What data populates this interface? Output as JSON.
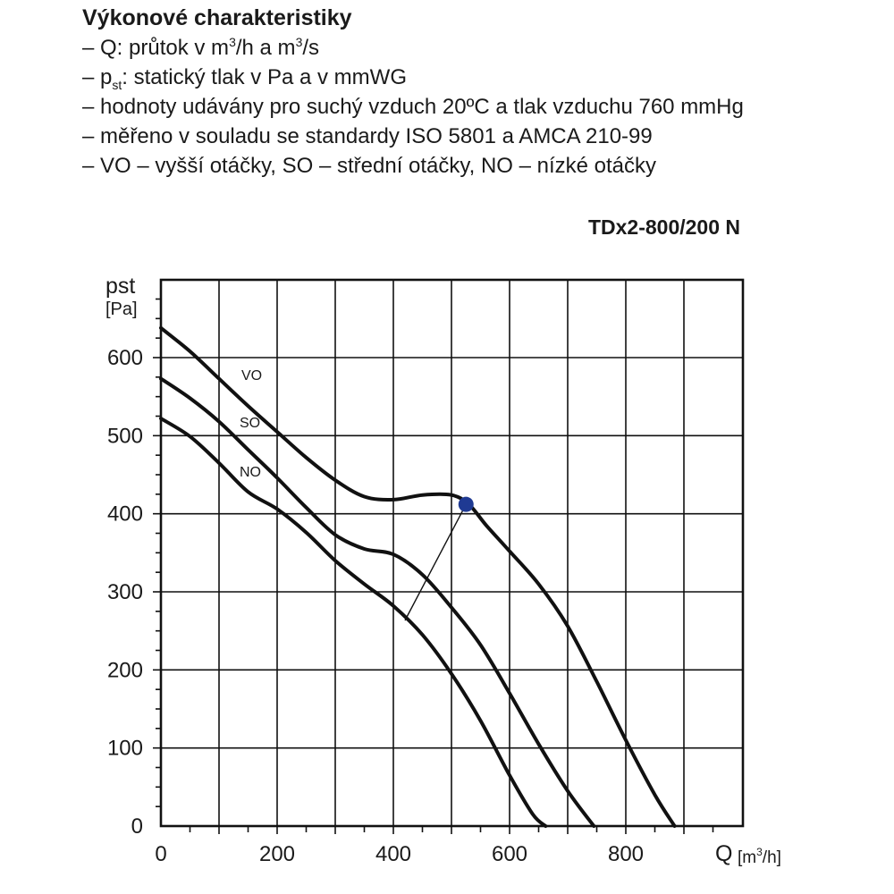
{
  "header": {
    "title": "Výkonové charakteristiky",
    "q_prefix": "– Q: průtok v m",
    "q_mid": "/h a m",
    "q_end": "/s",
    "q_sup": "3",
    "pst_prefix": "– p",
    "pst_sub": "st",
    "pst_rest": ": statický tlak v Pa a v mmWG",
    "line3": "– hodnoty udávány pro suchý vzduch 20ºC a tlak vzduchu 760 mmHg",
    "line4": "– měřeno v souladu se standardy ISO 5801 a AMCA 210-99",
    "line5": "– VO – vyšší otáčky, SO – střední otáčky, NO – nízké otáčky"
  },
  "chart_data": {
    "type": "line",
    "title": "TDx2-800/200 N",
    "xlabel": "Q",
    "xunit_prefix": "[m",
    "xunit_sup": "3",
    "xunit_suffix": "/h]",
    "ylabel": "pst",
    "yunit": "[Pa]",
    "xlim": [
      0,
      1000
    ],
    "ylim": [
      0,
      700
    ],
    "xticks": [
      0,
      200,
      400,
      600,
      800
    ],
    "yticks": [
      0,
      100,
      200,
      300,
      400,
      500,
      600
    ],
    "grid": true,
    "series": [
      {
        "name": "VO",
        "points": [
          [
            0,
            638
          ],
          [
            50,
            608
          ],
          [
            100,
            573
          ],
          [
            150,
            538
          ],
          [
            200,
            505
          ],
          [
            250,
            472
          ],
          [
            300,
            443
          ],
          [
            350,
            422
          ],
          [
            400,
            418
          ],
          [
            450,
            424
          ],
          [
            500,
            424
          ],
          [
            530,
            412
          ],
          [
            560,
            385
          ],
          [
            600,
            352
          ],
          [
            650,
            310
          ],
          [
            700,
            256
          ],
          [
            750,
            185
          ],
          [
            800,
            110
          ],
          [
            850,
            40
          ],
          [
            884,
            0
          ]
        ]
      },
      {
        "name": "SO",
        "points": [
          [
            0,
            573
          ],
          [
            50,
            548
          ],
          [
            100,
            518
          ],
          [
            150,
            482
          ],
          [
            200,
            446
          ],
          [
            250,
            408
          ],
          [
            300,
            373
          ],
          [
            350,
            355
          ],
          [
            400,
            348
          ],
          [
            450,
            322
          ],
          [
            500,
            280
          ],
          [
            550,
            232
          ],
          [
            600,
            170
          ],
          [
            650,
            105
          ],
          [
            700,
            45
          ],
          [
            745,
            0
          ]
        ]
      },
      {
        "name": "NO",
        "points": [
          [
            0,
            522
          ],
          [
            50,
            499
          ],
          [
            100,
            465
          ],
          [
            150,
            428
          ],
          [
            200,
            406
          ],
          [
            250,
            376
          ],
          [
            300,
            340
          ],
          [
            350,
            310
          ],
          [
            400,
            282
          ],
          [
            450,
            245
          ],
          [
            500,
            195
          ],
          [
            550,
            135
          ],
          [
            600,
            65
          ],
          [
            640,
            15
          ],
          [
            662,
            0
          ]
        ]
      }
    ],
    "operating_point": {
      "x": 525,
      "y": 412,
      "color": "#1f3a93"
    },
    "line_color": "#111111"
  }
}
